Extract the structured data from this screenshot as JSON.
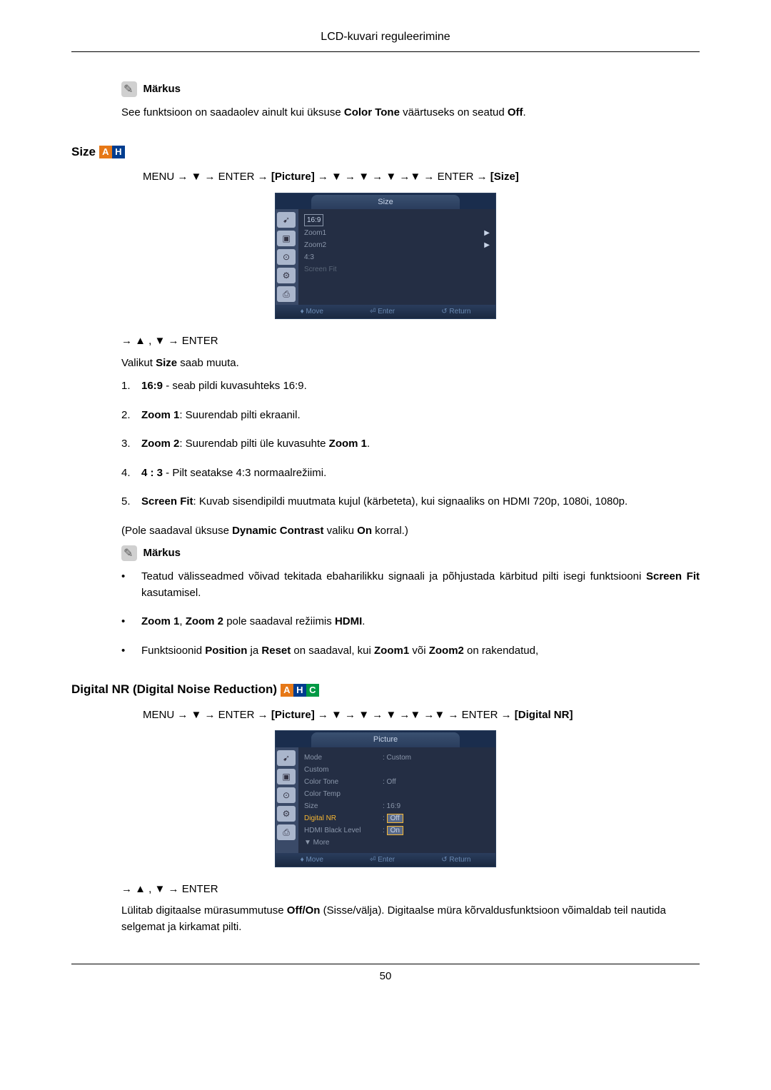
{
  "header": {
    "title": "LCD-kuvari reguleerimine"
  },
  "note1": {
    "label": "Märkus",
    "text_prefix": "See funktsioon on saadaolev ainult kui üksuse ",
    "bold1": "Color Tone",
    "text_mid": " väärtuseks on seatud ",
    "bold2": "Off",
    "text_suffix": "."
  },
  "size_section": {
    "title": "Size",
    "menu_path_prefix": "MENU → ▼ → ENTER → ",
    "menu_path_bold1": "[Picture]",
    "menu_path_mid": " → ▼ → ▼ → ▼ →▼ → ENTER → ",
    "menu_path_bold2": "[Size]",
    "after_path": "→ ▲ , ▼ → ENTER",
    "desc_prefix": "Valikut ",
    "desc_bold": "Size",
    "desc_suffix": " saab muuta."
  },
  "osd_size": {
    "tab": "Size",
    "items": [
      {
        "label": "16:9",
        "boxed": true,
        "arrow": false
      },
      {
        "label": "Zoom1",
        "boxed": false,
        "arrow": true
      },
      {
        "label": "Zoom2",
        "boxed": false,
        "arrow": true
      },
      {
        "label": "4:3",
        "boxed": false,
        "arrow": false
      },
      {
        "label": "Screen Fit",
        "boxed": false,
        "arrow": false,
        "dim": true
      }
    ],
    "footer": {
      "move": "♦ Move",
      "enter": "⏎ Enter",
      "return": "↺ Return"
    },
    "icons": [
      "➹",
      "▣",
      "⊙",
      "⚙",
      "⎙"
    ]
  },
  "size_list": {
    "items": [
      {
        "num": "1.",
        "bold": "16:9",
        "text": " - seab pildi kuvasuhteks 16:9."
      },
      {
        "num": "2.",
        "bold": "Zoom 1",
        "text": ": Suurendab pilti ekraanil."
      },
      {
        "num": "3.",
        "bold": "Zoom 2",
        "text_before": ": Suurendab pilti üle kuvasuhte ",
        "bold2": "Zoom 1",
        "text_after": "."
      },
      {
        "num": "4.",
        "bold": "4 : 3",
        "text": " - Pilt seatakse 4:3 normaalrežiimi."
      },
      {
        "num": "5.",
        "bold": "Screen Fit",
        "text": ": Kuvab sisendipildi muutmata kujul (kärbeteta), kui signaaliks on HDMI 720p, 1080i, 1080p."
      }
    ]
  },
  "availability": {
    "prefix": "(Pole saadaval üksuse ",
    "bold1": "Dynamic Contrast",
    "mid": " valiku ",
    "bold2": "On",
    "suffix": " korral.)"
  },
  "note2": {
    "label": "Märkus",
    "bullets": [
      {
        "text_before": "Teatud välisseadmed võivad tekitada ebaharilikku signaali ja põhjustada kärbitud pilti isegi funktsiooni ",
        "bold": "Screen Fit",
        "text_after": " kasutamisel."
      },
      {
        "bold1": "Zoom 1",
        "mid1": ", ",
        "bold2": "Zoom 2",
        "mid2": " pole saadaval režiimis ",
        "bold3": "HDMI",
        "suffix": "."
      },
      {
        "prefix": "Funktsioonid ",
        "bold1": "Position",
        "mid1": " ja ",
        "bold2": "Reset",
        "mid2": " on saadaval, kui ",
        "bold3": "Zoom1",
        "mid3": " või ",
        "bold4": "Zoom2",
        "suffix": " on rakendatud,"
      }
    ]
  },
  "digital_nr_section": {
    "title": "Digital NR (Digital Noise Reduction)",
    "menu_path_prefix": "MENU → ▼ → ENTER → ",
    "menu_path_bold1": "[Picture]",
    "menu_path_mid": " → ▼ → ▼ → ▼ →▼ →▼ → ENTER → ",
    "menu_path_bold2": "[Digital NR]",
    "after_path": "→ ▲ , ▼ → ENTER",
    "desc_prefix": "Lülitab digitaalse mürasummutuse ",
    "desc_bold": "Off/On",
    "desc_suffix": " (Sisse/välja). Digitaalse müra kõrvaldusfunktsioon võimaldab teil nautida selgemat ja kirkamat pilti."
  },
  "osd_picture": {
    "tab": "Picture",
    "rows": [
      {
        "label": "Mode",
        "value": ": Custom"
      },
      {
        "label": "Custom",
        "value": ""
      },
      {
        "label": "Color Tone",
        "value": ": Off"
      },
      {
        "label": "Color Temp",
        "value": ""
      },
      {
        "label": "Size",
        "value": ": 16:9"
      },
      {
        "label": "Digital NR",
        "value": ": ",
        "highlight_label": true,
        "boxed_val": "Off"
      },
      {
        "label": "HDMI Black Level",
        "value": ": ",
        "boxed_val": "On"
      },
      {
        "label": "▼ More",
        "value": ""
      }
    ],
    "footer": {
      "move": "♦ Move",
      "enter": "⏎ Enter",
      "return": "↺ Return"
    },
    "icons": [
      "➹",
      "▣",
      "⊙",
      "⚙",
      "⎙"
    ]
  },
  "page_number": "50"
}
